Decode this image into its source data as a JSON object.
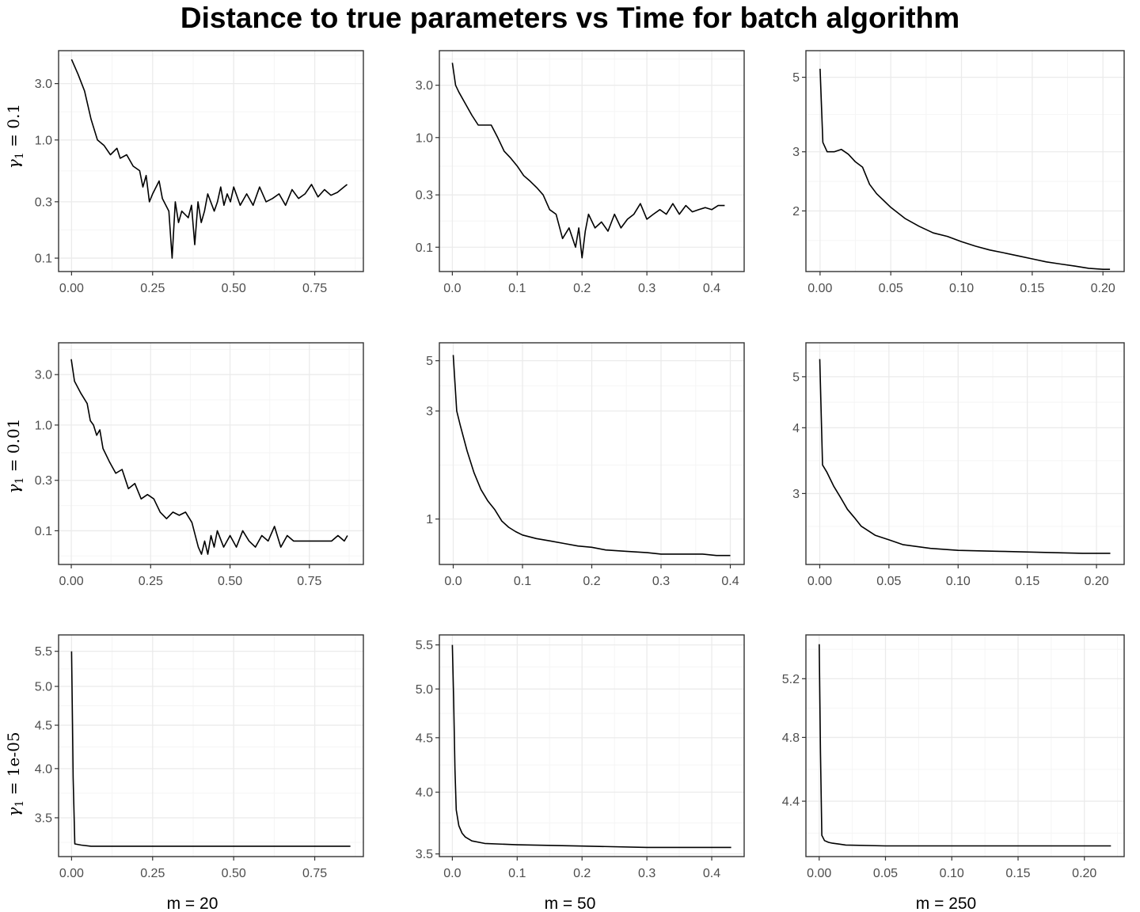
{
  "title": "Distance to true parameters vs Time for batch algorithm",
  "column_labels": [
    "m = 20",
    "m = 50",
    "m = 250"
  ],
  "row_labels": [
    {
      "prefix": "γ",
      "sub": "1",
      "eq": " = 0.1"
    },
    {
      "prefix": "γ",
      "sub": "1",
      "eq": " = 0.01"
    },
    {
      "prefix": "γ",
      "sub": "1",
      "eq": " = 1e-05"
    }
  ],
  "colors": {
    "line": "#000000",
    "grid_major": "#ebebeb",
    "grid_minor": "#f5f5f5",
    "border": "#333333",
    "tick_text": "#4d4d4d"
  },
  "chart_data": [
    {
      "type": "line",
      "panel": "gamma1=0.1, m=20",
      "yscale": "log",
      "grid": true,
      "xlim": [
        -0.04,
        0.9
      ],
      "ylim": [
        0.077,
        5.7
      ],
      "xticks": [
        0,
        0.25,
        0.5,
        0.75
      ],
      "xtick_labels": [
        "0.00",
        "0.25",
        "0.50",
        "0.75"
      ],
      "yticks": [
        0.1,
        0.3,
        1,
        3
      ],
      "ytick_labels": [
        "0.1",
        "0.3",
        "1.0",
        "3.0"
      ],
      "x": [
        0.0,
        0.02,
        0.04,
        0.06,
        0.08,
        0.1,
        0.12,
        0.14,
        0.15,
        0.17,
        0.19,
        0.21,
        0.22,
        0.23,
        0.24,
        0.25,
        0.27,
        0.28,
        0.3,
        0.31,
        0.32,
        0.33,
        0.34,
        0.36,
        0.37,
        0.38,
        0.39,
        0.4,
        0.41,
        0.42,
        0.44,
        0.45,
        0.46,
        0.47,
        0.48,
        0.49,
        0.5,
        0.52,
        0.54,
        0.56,
        0.58,
        0.6,
        0.62,
        0.64,
        0.66,
        0.68,
        0.7,
        0.72,
        0.74,
        0.76,
        0.78,
        0.8,
        0.82,
        0.84,
        0.85
      ],
      "y": [
        4.8,
        3.6,
        2.6,
        1.5,
        1.0,
        0.9,
        0.75,
        0.85,
        0.7,
        0.75,
        0.6,
        0.55,
        0.4,
        0.5,
        0.3,
        0.35,
        0.45,
        0.32,
        0.25,
        0.1,
        0.3,
        0.2,
        0.25,
        0.22,
        0.28,
        0.13,
        0.3,
        0.2,
        0.25,
        0.35,
        0.25,
        0.3,
        0.4,
        0.28,
        0.35,
        0.3,
        0.4,
        0.28,
        0.35,
        0.28,
        0.4,
        0.3,
        0.32,
        0.35,
        0.28,
        0.38,
        0.32,
        0.35,
        0.42,
        0.33,
        0.38,
        0.34,
        0.36,
        0.4,
        0.42
      ]
    },
    {
      "type": "line",
      "panel": "gamma1=0.1, m=50",
      "yscale": "log",
      "grid": true,
      "xlim": [
        -0.02,
        0.45
      ],
      "ylim": [
        0.06,
        6.2
      ],
      "xticks": [
        0,
        0.1,
        0.2,
        0.3,
        0.4
      ],
      "xtick_labels": [
        "0.0",
        "0.1",
        "0.2",
        "0.3",
        "0.4"
      ],
      "yticks": [
        0.1,
        0.3,
        1,
        3
      ],
      "ytick_labels": [
        "0.1",
        "0.3",
        "1.0",
        "3.0"
      ],
      "x": [
        0.0,
        0.005,
        0.01,
        0.03,
        0.04,
        0.05,
        0.06,
        0.07,
        0.08,
        0.09,
        0.1,
        0.11,
        0.12,
        0.13,
        0.14,
        0.15,
        0.16,
        0.17,
        0.18,
        0.19,
        0.195,
        0.2,
        0.205,
        0.21,
        0.22,
        0.23,
        0.24,
        0.25,
        0.26,
        0.27,
        0.28,
        0.29,
        0.3,
        0.31,
        0.32,
        0.33,
        0.34,
        0.35,
        0.36,
        0.37,
        0.38,
        0.39,
        0.4,
        0.41,
        0.42
      ],
      "y": [
        4.8,
        3.0,
        2.6,
        1.6,
        1.3,
        1.3,
        1.3,
        1.0,
        0.75,
        0.65,
        0.55,
        0.45,
        0.4,
        0.35,
        0.3,
        0.22,
        0.2,
        0.12,
        0.15,
        0.1,
        0.15,
        0.08,
        0.14,
        0.2,
        0.15,
        0.17,
        0.14,
        0.2,
        0.15,
        0.18,
        0.2,
        0.25,
        0.18,
        0.2,
        0.22,
        0.2,
        0.25,
        0.2,
        0.24,
        0.21,
        0.22,
        0.23,
        0.22,
        0.24,
        0.24
      ]
    },
    {
      "type": "line",
      "panel": "gamma1=0.1, m=250",
      "yscale": "log",
      "grid": true,
      "xlim": [
        -0.01,
        0.215
      ],
      "ylim": [
        1.32,
        6.0
      ],
      "xticks": [
        0,
        0.05,
        0.1,
        0.15,
        0.2
      ],
      "xtick_labels": [
        "0.00",
        "0.05",
        "0.10",
        "0.15",
        "0.20"
      ],
      "yticks": [
        2,
        3,
        5
      ],
      "ytick_labels": [
        "2",
        "3",
        "5"
      ],
      "x": [
        0.0,
        0.002,
        0.005,
        0.01,
        0.015,
        0.02,
        0.025,
        0.03,
        0.035,
        0.04,
        0.05,
        0.06,
        0.07,
        0.08,
        0.09,
        0.1,
        0.11,
        0.12,
        0.13,
        0.14,
        0.15,
        0.16,
        0.17,
        0.18,
        0.19,
        0.2,
        0.205
      ],
      "y": [
        5.3,
        3.2,
        3.0,
        3.0,
        3.05,
        2.95,
        2.8,
        2.7,
        2.4,
        2.25,
        2.05,
        1.9,
        1.8,
        1.72,
        1.68,
        1.62,
        1.57,
        1.53,
        1.5,
        1.47,
        1.44,
        1.41,
        1.39,
        1.37,
        1.35,
        1.34,
        1.34
      ]
    },
    {
      "type": "line",
      "panel": "gamma1=0.01, m=20",
      "yscale": "log",
      "grid": true,
      "xlim": [
        -0.04,
        0.92
      ],
      "ylim": [
        0.048,
        6.0
      ],
      "xticks": [
        0,
        0.25,
        0.5,
        0.75
      ],
      "xtick_labels": [
        "0.00",
        "0.25",
        "0.50",
        "0.75"
      ],
      "yticks": [
        0.1,
        0.3,
        1,
        3
      ],
      "ytick_labels": [
        "0.1",
        "0.3",
        "1.0",
        "3.0"
      ],
      "x": [
        0.0,
        0.01,
        0.03,
        0.05,
        0.06,
        0.07,
        0.08,
        0.09,
        0.1,
        0.12,
        0.14,
        0.16,
        0.18,
        0.2,
        0.22,
        0.24,
        0.26,
        0.28,
        0.3,
        0.32,
        0.34,
        0.36,
        0.38,
        0.4,
        0.41,
        0.42,
        0.43,
        0.44,
        0.45,
        0.46,
        0.48,
        0.5,
        0.52,
        0.54,
        0.56,
        0.58,
        0.6,
        0.62,
        0.64,
        0.66,
        0.68,
        0.7,
        0.72,
        0.74,
        0.76,
        0.78,
        0.8,
        0.82,
        0.84,
        0.86,
        0.87
      ],
      "y": [
        4.2,
        2.6,
        2.0,
        1.6,
        1.1,
        1.0,
        0.8,
        0.9,
        0.6,
        0.45,
        0.35,
        0.38,
        0.25,
        0.28,
        0.2,
        0.22,
        0.2,
        0.15,
        0.13,
        0.15,
        0.14,
        0.15,
        0.12,
        0.07,
        0.06,
        0.08,
        0.06,
        0.09,
        0.07,
        0.1,
        0.07,
        0.09,
        0.07,
        0.1,
        0.08,
        0.07,
        0.09,
        0.08,
        0.11,
        0.07,
        0.09,
        0.08,
        0.08,
        0.08,
        0.08,
        0.08,
        0.08,
        0.08,
        0.09,
        0.08,
        0.09
      ]
    },
    {
      "type": "line",
      "panel": "gamma1=0.01, m=50",
      "yscale": "log",
      "grid": true,
      "xlim": [
        -0.02,
        0.42
      ],
      "ylim": [
        0.63,
        6.0
      ],
      "xticks": [
        0,
        0.1,
        0.2,
        0.3,
        0.4
      ],
      "xtick_labels": [
        "0.0",
        "0.1",
        "0.2",
        "0.3",
        "0.4"
      ],
      "yticks": [
        1,
        3,
        5
      ],
      "ytick_labels": [
        "1",
        "3",
        "5"
      ],
      "x": [
        0.0,
        0.005,
        0.01,
        0.02,
        0.03,
        0.04,
        0.05,
        0.06,
        0.07,
        0.08,
        0.09,
        0.1,
        0.12,
        0.14,
        0.16,
        0.18,
        0.2,
        0.22,
        0.25,
        0.28,
        0.3,
        0.33,
        0.36,
        0.38,
        0.4
      ],
      "y": [
        5.3,
        3.0,
        2.6,
        2.0,
        1.6,
        1.35,
        1.2,
        1.1,
        0.98,
        0.92,
        0.88,
        0.85,
        0.82,
        0.8,
        0.78,
        0.76,
        0.75,
        0.73,
        0.72,
        0.71,
        0.7,
        0.7,
        0.7,
        0.69,
        0.69
      ]
    },
    {
      "type": "line",
      "panel": "gamma1=0.01, m=250",
      "yscale": "log",
      "grid": true,
      "xlim": [
        -0.01,
        0.22
      ],
      "ylim": [
        2.2,
        5.8
      ],
      "xticks": [
        0,
        0.05,
        0.1,
        0.15,
        0.2
      ],
      "xtick_labels": [
        "0.00",
        "0.05",
        "0.10",
        "0.15",
        "0.20"
      ],
      "yticks": [
        3,
        4,
        5
      ],
      "ytick_labels": [
        "3",
        "4",
        "5"
      ],
      "x": [
        0.0,
        0.002,
        0.005,
        0.01,
        0.015,
        0.02,
        0.025,
        0.03,
        0.04,
        0.05,
        0.06,
        0.08,
        0.1,
        0.13,
        0.16,
        0.19,
        0.21
      ],
      "y": [
        5.4,
        3.4,
        3.3,
        3.1,
        2.95,
        2.8,
        2.7,
        2.6,
        2.5,
        2.45,
        2.4,
        2.36,
        2.34,
        2.33,
        2.32,
        2.31,
        2.31
      ]
    },
    {
      "type": "line",
      "panel": "gamma1=1e-05, m=20",
      "yscale": "log",
      "grid": true,
      "xlim": [
        -0.04,
        0.9
      ],
      "ylim": [
        3.15,
        5.75
      ],
      "xticks": [
        0,
        0.25,
        0.5,
        0.75
      ],
      "xtick_labels": [
        "0.00",
        "0.25",
        "0.50",
        "0.75"
      ],
      "yticks": [
        3.5,
        4.0,
        4.5,
        5.0,
        5.5
      ],
      "ytick_labels": [
        "3.5",
        "4.0",
        "4.5",
        "5.0",
        "5.5"
      ],
      "x": [
        0.0,
        0.003,
        0.005,
        0.01,
        0.03,
        0.06,
        0.2,
        0.5,
        0.86
      ],
      "y": [
        5.5,
        4.5,
        3.9,
        3.26,
        3.25,
        3.24,
        3.24,
        3.24,
        3.24
      ]
    },
    {
      "type": "line",
      "panel": "gamma1=1e-05, m=50",
      "yscale": "log",
      "grid": true,
      "xlim": [
        -0.02,
        0.45
      ],
      "ylim": [
        3.48,
        5.62
      ],
      "xticks": [
        0,
        0.1,
        0.2,
        0.3,
        0.4
      ],
      "xtick_labels": [
        "0.0",
        "0.1",
        "0.2",
        "0.3",
        "0.4"
      ],
      "yticks": [
        3.5,
        4.0,
        4.5,
        5.0,
        5.5
      ],
      "ytick_labels": [
        "3.5",
        "4.0",
        "4.5",
        "5.0",
        "5.5"
      ],
      "x": [
        0.0,
        0.002,
        0.004,
        0.006,
        0.01,
        0.015,
        0.02,
        0.03,
        0.05,
        0.1,
        0.2,
        0.3,
        0.43
      ],
      "y": [
        5.5,
        4.9,
        4.2,
        3.85,
        3.72,
        3.66,
        3.63,
        3.6,
        3.58,
        3.57,
        3.56,
        3.55,
        3.55
      ]
    },
    {
      "type": "line",
      "panel": "gamma1=1e-05, m=250",
      "yscale": "log",
      "grid": true,
      "xlim": [
        -0.01,
        0.23
      ],
      "ylim": [
        4.08,
        5.52
      ],
      "xticks": [
        0,
        0.05,
        0.1,
        0.15,
        0.2
      ],
      "xtick_labels": [
        "0.00",
        "0.05",
        "0.10",
        "0.15",
        "0.20"
      ],
      "yticks": [
        4.4,
        4.8,
        5.2
      ],
      "ytick_labels": [
        "4.4",
        "4.8",
        "5.2"
      ],
      "x": [
        0.0,
        0.001,
        0.002,
        0.004,
        0.007,
        0.01,
        0.015,
        0.02,
        0.05,
        0.1,
        0.15,
        0.22
      ],
      "y": [
        5.45,
        4.7,
        4.2,
        4.17,
        4.16,
        4.155,
        4.15,
        4.145,
        4.14,
        4.14,
        4.14,
        4.14
      ]
    }
  ]
}
